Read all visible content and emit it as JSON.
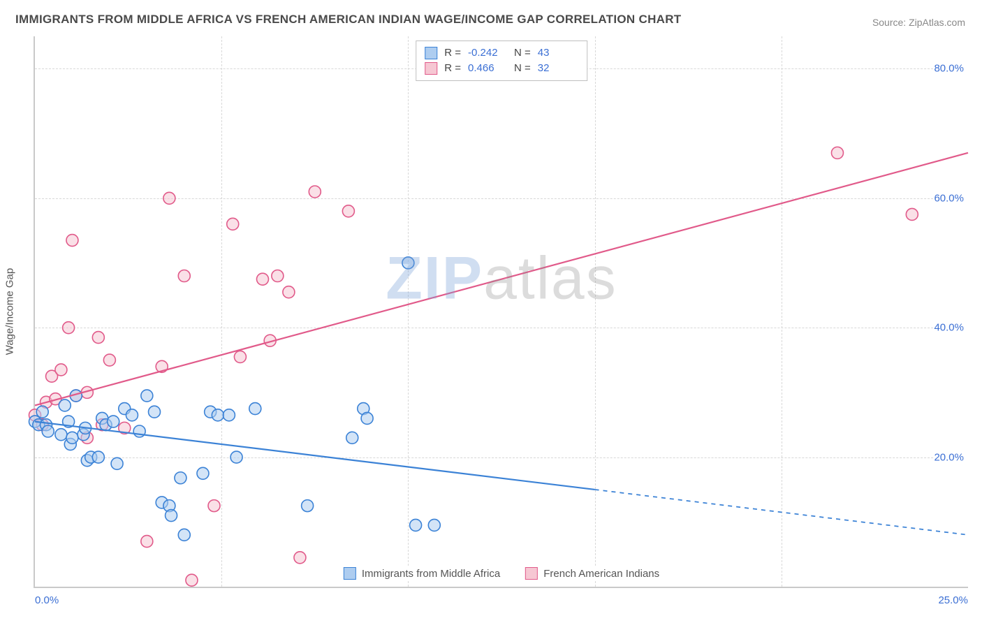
{
  "title": "IMMIGRANTS FROM MIDDLE AFRICA VS FRENCH AMERICAN INDIAN WAGE/INCOME GAP CORRELATION CHART",
  "source": "Source: ZipAtlas.com",
  "y_axis_title": "Wage/Income Gap",
  "watermark": {
    "part1": "ZIP",
    "part2": "atlas"
  },
  "chart": {
    "type": "scatter",
    "background_color": "#ffffff",
    "grid_color": "#d8d8d8",
    "axis_color": "#c9c9c9",
    "tick_label_color": "#3b6fd4",
    "tick_fontsize": 15,
    "title_fontsize": 17,
    "title_color": "#4a4a4a",
    "xlim": [
      0,
      25
    ],
    "ylim": [
      0,
      85
    ],
    "x_ticks": [
      0,
      5,
      10,
      15,
      20,
      25
    ],
    "x_tick_labels": [
      "0.0%",
      "",
      "",
      "",
      "",
      "25.0%"
    ],
    "y_ticks": [
      20,
      40,
      60,
      80
    ],
    "y_tick_labels": [
      "20.0%",
      "40.0%",
      "60.0%",
      "80.0%"
    ],
    "marker_radius": 8.5,
    "marker_stroke_width": 1.6,
    "line_width": 2.2
  },
  "series": [
    {
      "name": "Immigrants from Middle Africa",
      "fill_color": "#aecdf0",
      "stroke_color": "#3b82d6",
      "fill_opacity": 0.55,
      "R": "-0.242",
      "N": "43",
      "trend": {
        "x1": 0,
        "y1": 25.5,
        "x2": 15,
        "y2": 15.0,
        "solid_until_x": 15,
        "dashed_to_x": 25,
        "dashed_y": 8.0
      },
      "points": [
        [
          0.0,
          25.5
        ],
        [
          0.1,
          25.0
        ],
        [
          0.2,
          27.0
        ],
        [
          0.3,
          25.0
        ],
        [
          0.35,
          24.0
        ],
        [
          0.7,
          23.5
        ],
        [
          0.8,
          28.0
        ],
        [
          0.9,
          25.5
        ],
        [
          0.95,
          22.0
        ],
        [
          1.0,
          23.0
        ],
        [
          1.1,
          29.5
        ],
        [
          1.3,
          23.5
        ],
        [
          1.35,
          24.5
        ],
        [
          1.4,
          19.5
        ],
        [
          1.5,
          20.0
        ],
        [
          1.7,
          20.0
        ],
        [
          1.8,
          26.0
        ],
        [
          1.9,
          25.0
        ],
        [
          2.1,
          25.5
        ],
        [
          2.2,
          19.0
        ],
        [
          2.4,
          27.5
        ],
        [
          2.6,
          26.5
        ],
        [
          2.8,
          24.0
        ],
        [
          3.0,
          29.5
        ],
        [
          3.2,
          27.0
        ],
        [
          3.4,
          13.0
        ],
        [
          3.6,
          12.5
        ],
        [
          3.65,
          11.0
        ],
        [
          3.9,
          16.8
        ],
        [
          4.0,
          8.0
        ],
        [
          4.7,
          27.0
        ],
        [
          4.9,
          26.5
        ],
        [
          4.5,
          17.5
        ],
        [
          5.2,
          26.5
        ],
        [
          5.4,
          20.0
        ],
        [
          5.9,
          27.5
        ],
        [
          7.3,
          12.5
        ],
        [
          8.5,
          23.0
        ],
        [
          8.8,
          27.5
        ],
        [
          8.9,
          26.0
        ],
        [
          10.2,
          9.5
        ],
        [
          10.7,
          9.5
        ],
        [
          10.0,
          50.0
        ]
      ]
    },
    {
      "name": "French American Indians",
      "fill_color": "#f6c7d3",
      "stroke_color": "#e15a8a",
      "fill_opacity": 0.55,
      "R": "0.466",
      "N": "32",
      "trend": {
        "x1": 0,
        "y1": 28.0,
        "x2": 25,
        "y2": 67.0,
        "solid_until_x": 25,
        "dashed_to_x": 25,
        "dashed_y": 67.0
      },
      "points": [
        [
          0.0,
          26.5
        ],
        [
          0.2,
          25.0
        ],
        [
          0.3,
          28.5
        ],
        [
          0.45,
          32.5
        ],
        [
          0.55,
          29.0
        ],
        [
          0.7,
          33.5
        ],
        [
          0.9,
          40.0
        ],
        [
          1.0,
          53.5
        ],
        [
          1.1,
          29.5
        ],
        [
          1.4,
          23.0
        ],
        [
          1.4,
          30.0
        ],
        [
          1.7,
          38.5
        ],
        [
          1.8,
          25.0
        ],
        [
          2.0,
          35.0
        ],
        [
          2.4,
          24.5
        ],
        [
          3.0,
          7.0
        ],
        [
          3.4,
          34.0
        ],
        [
          3.6,
          60.0
        ],
        [
          4.0,
          48.0
        ],
        [
          4.2,
          1.0
        ],
        [
          4.8,
          12.5
        ],
        [
          5.3,
          56.0
        ],
        [
          5.5,
          35.5
        ],
        [
          6.1,
          47.5
        ],
        [
          6.3,
          38.0
        ],
        [
          6.5,
          48.0
        ],
        [
          6.8,
          45.5
        ],
        [
          7.1,
          4.5
        ],
        [
          7.5,
          61.0
        ],
        [
          8.4,
          58.0
        ],
        [
          21.5,
          67.0
        ],
        [
          23.5,
          57.5
        ]
      ]
    }
  ],
  "stat_legend_labels": {
    "R": "R =",
    "N": "N ="
  },
  "bottom_legend": [
    {
      "label": "Immigrants from Middle Africa",
      "series_index": 0
    },
    {
      "label": "French American Indians",
      "series_index": 1
    }
  ]
}
